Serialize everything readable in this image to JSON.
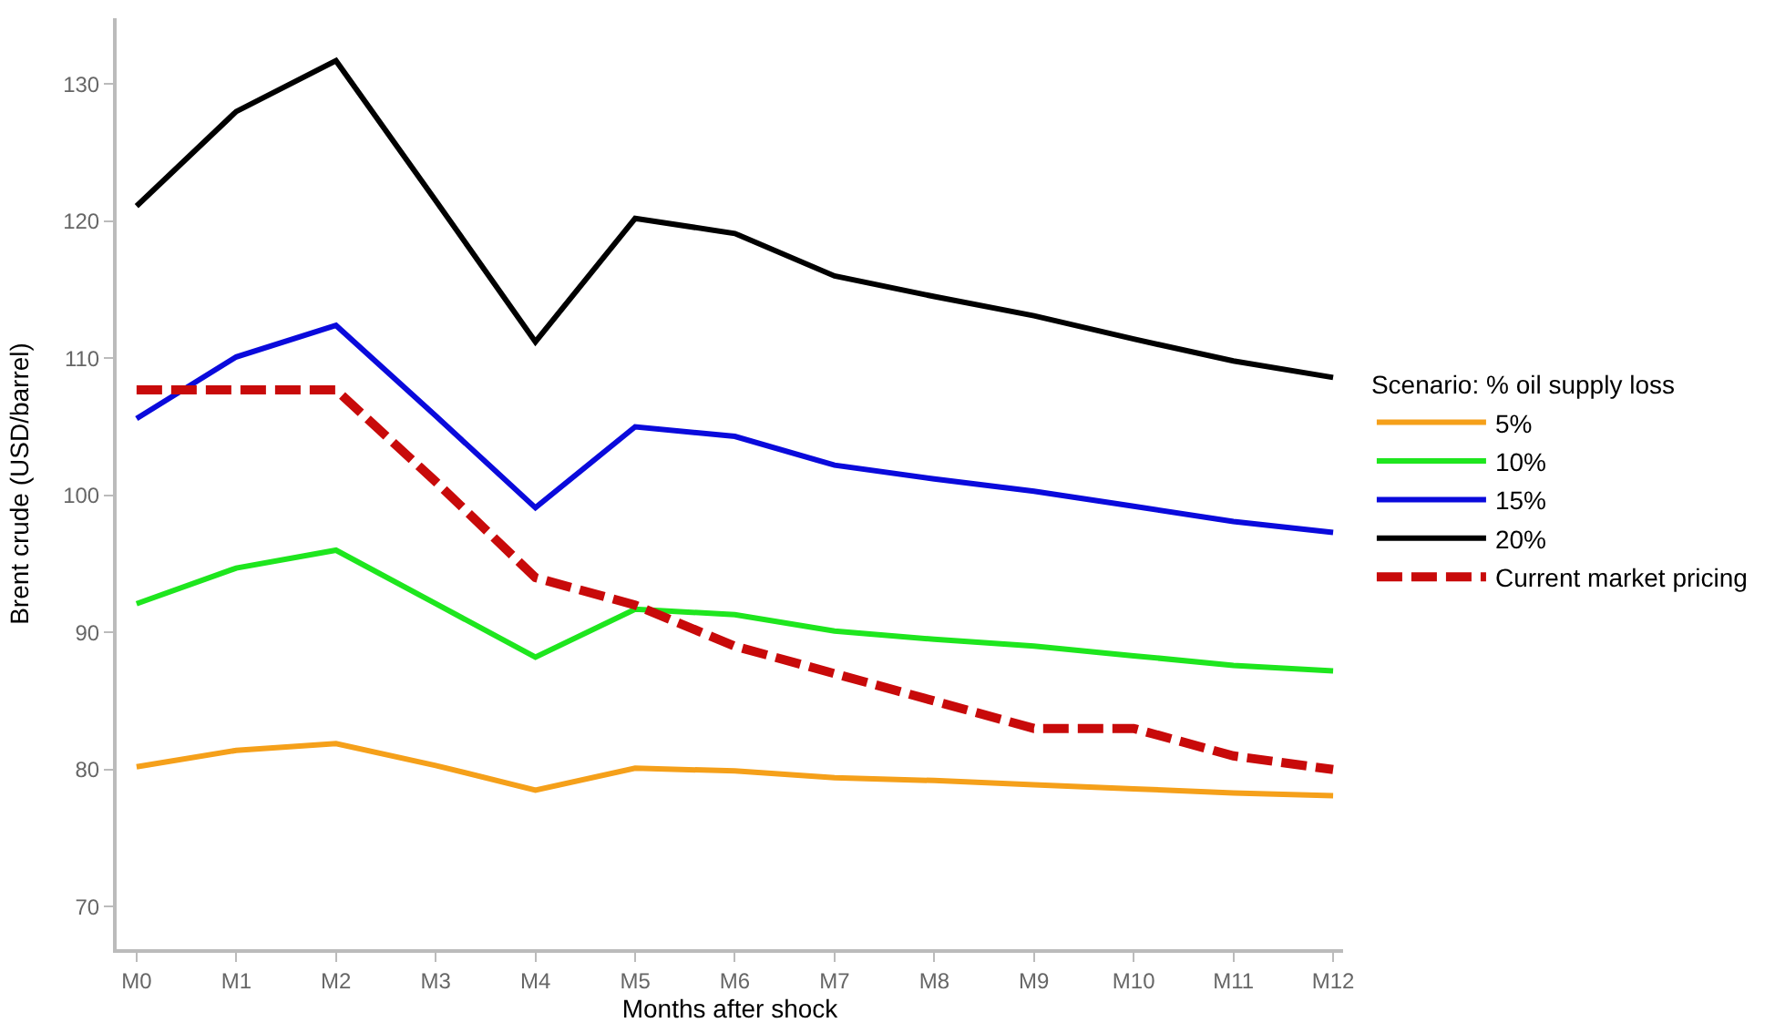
{
  "chart_data": {
    "type": "line",
    "xlabel": "Months after shock",
    "ylabel": "Brent crude (USD/barrel)",
    "legend_title": "Scenario: % oil supply loss",
    "categories": [
      "M0",
      "M1",
      "M2",
      "M3",
      "M4",
      "M5",
      "M6",
      "M7",
      "M8",
      "M9",
      "M10",
      "M11",
      "M12"
    ],
    "ylim": [
      66.9,
      134.8
    ],
    "yticks": [
      70,
      80,
      90,
      100,
      110,
      120,
      130
    ],
    "legend": "right",
    "marker": "none",
    "series": [
      {
        "name": "5%",
        "color": "#f5a01a",
        "line_style": "solid",
        "values": [
          80.2,
          81.4,
          81.9,
          80.3,
          78.5,
          80.1,
          79.9,
          79.4,
          79.2,
          78.9,
          78.6,
          78.3,
          78.1
        ]
      },
      {
        "name": "10%",
        "color": "#1ee61e",
        "line_style": "solid",
        "values": [
          92.1,
          94.7,
          96,
          92.1,
          88.2,
          91.7,
          91.3,
          90.1,
          89.5,
          89,
          88.3,
          87.6,
          87.2
        ]
      },
      {
        "name": "15%",
        "color": "#0a0adc",
        "line_style": "solid",
        "values": [
          105.6,
          110.1,
          112.4,
          105.8,
          99.1,
          105,
          104.3,
          102.2,
          101.2,
          100.3,
          99.2,
          98.1,
          97.3
        ]
      },
      {
        "name": "20%",
        "color": "#000000",
        "line_style": "solid",
        "values": [
          121.1,
          128,
          131.7,
          121.5,
          111.2,
          120.2,
          119.1,
          116,
          114.5,
          113.1,
          111.4,
          109.8,
          108.6
        ]
      },
      {
        "name": "Current market pricing",
        "color": "#c80a0a",
        "line_style": "dashed",
        "values": [
          107.7,
          107.7,
          107.7,
          101,
          94,
          92,
          89,
          87,
          85,
          83,
          83,
          81,
          80
        ]
      }
    ]
  }
}
